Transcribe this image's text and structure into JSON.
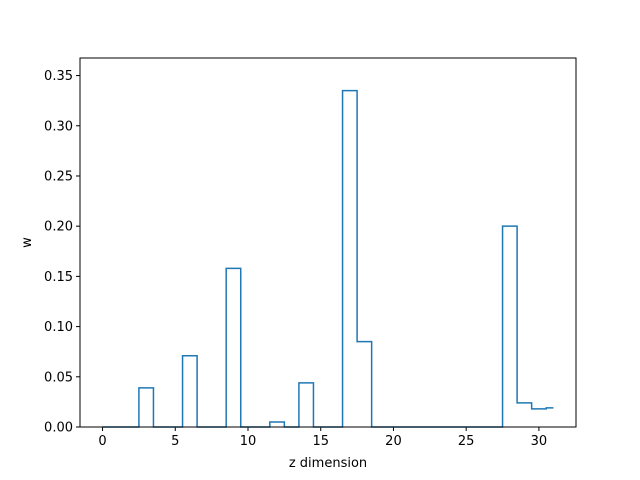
{
  "chart_data": {
    "type": "line",
    "drawstyle": "steps-mid",
    "title": "",
    "xlabel": "z dimension",
    "ylabel": "w",
    "xlim": [
      -1.55,
      32.55
    ],
    "ylim": [
      0.0,
      0.3675
    ],
    "xticks": [
      0,
      5,
      10,
      15,
      20,
      25,
      30
    ],
    "yticks": [
      0.0,
      0.05,
      0.1,
      0.15,
      0.2,
      0.25,
      0.3,
      0.35
    ],
    "ytick_labels": [
      "0.00",
      "0.05",
      "0.10",
      "0.15",
      "0.20",
      "0.25",
      "0.30",
      "0.35"
    ],
    "grid": false,
    "line_color": "#1f77b4",
    "series": [
      {
        "x": [
          0,
          1,
          2,
          3,
          4,
          5,
          6,
          7,
          8,
          9,
          10,
          11,
          12,
          13,
          14,
          15,
          16,
          17,
          18,
          19,
          20,
          21,
          22,
          23,
          24,
          25,
          26,
          27,
          28,
          29,
          30,
          31
        ],
        "values": [
          0,
          0,
          0,
          0.039,
          0,
          0,
          0.071,
          0,
          0,
          0.158,
          0,
          0,
          0.005,
          0,
          0.044,
          0,
          0,
          0.335,
          0.085,
          0,
          0,
          0,
          0,
          0,
          0,
          0,
          0,
          0,
          0.2,
          0.024,
          0.018,
          0.019
        ]
      }
    ]
  }
}
